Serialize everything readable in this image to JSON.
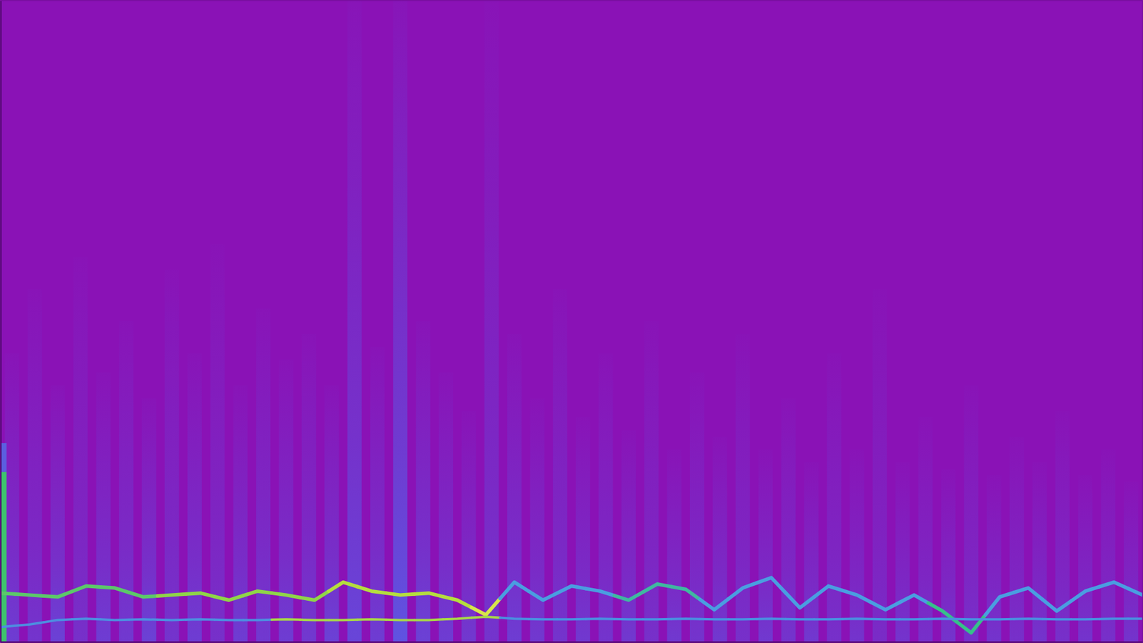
{
  "chart_data": {
    "type": "spectrogram",
    "tick_labels": false,
    "xlim": [
      0,
      100
    ],
    "ylim": [
      0,
      100
    ],
    "x": [
      0,
      2.5,
      5,
      7.5,
      10,
      12.5,
      15,
      17.5,
      20,
      22.5,
      25,
      27.5,
      30,
      32.5,
      35,
      37.5,
      40,
      42.5,
      45,
      47.5,
      50,
      52.5,
      55,
      57.5,
      60,
      62.5,
      65,
      67.5,
      70,
      72.5,
      75,
      77.5,
      80,
      82.5,
      85,
      87.5,
      90,
      92.5,
      95,
      97.5,
      100
    ],
    "series": [
      {
        "type": "line",
        "values": [
          7.6,
          7.3,
          7.0,
          8.7,
          8.4,
          7.0,
          7.3,
          7.6,
          6.5,
          7.9,
          7.3,
          6.5,
          9.3,
          7.9,
          7.3,
          7.6,
          6.5,
          4.2,
          9.3,
          6.5,
          8.7,
          7.9,
          6.5,
          9.0,
          8.2,
          5.0,
          8.4,
          10.0,
          5.3,
          8.7,
          7.3,
          5.0,
          7.3,
          4.8,
          1.4,
          7.0,
          8.4,
          4.8,
          7.9,
          9.3,
          7.3
        ],
        "colors": [
          "#5cc86a",
          "#5cc86a",
          "#5cc86a",
          "#5cc86a",
          "#5cc86a",
          "#5cc86a",
          "#8fd548",
          "#8fd548",
          "#8fd548",
          "#8fd548",
          "#8fd548",
          "#8fd548",
          "#b5de3e",
          "#b5de3e",
          "#b5de3e",
          "#b5de3e",
          "#b5de3e",
          "#d8e64a",
          "#4a9ee0",
          "#4a9ee0",
          "#4a9ee0",
          "#4a9ee0",
          "#3fb8a0",
          "#3fb8a0",
          "#3fb8a0",
          "#4a9ee0",
          "#4a9ee0",
          "#4a9ee0",
          "#4a9ee0",
          "#4a9ee0",
          "#4a9ee0",
          "#4a9ee0",
          "#4a9ee0",
          "#36c08a",
          "#36c08a",
          "#4a9ee0",
          "#4a9ee0",
          "#4a9ee0",
          "#4a9ee0",
          "#4a9ee0",
          "#4a9ee0"
        ]
      },
      {
        "type": "line",
        "values": [
          2.3,
          2.7,
          3.4,
          3.6,
          3.4,
          3.5,
          3.4,
          3.5,
          3.4,
          3.4,
          3.5,
          3.4,
          3.4,
          3.5,
          3.4,
          3.4,
          3.6,
          3.9,
          3.6,
          3.5,
          3.5,
          3.6,
          3.5,
          3.5,
          3.6,
          3.5,
          3.5,
          3.6,
          3.5,
          3.5,
          3.6,
          3.5,
          3.5,
          3.6,
          3.5,
          3.5,
          3.6,
          3.5,
          3.5,
          3.6,
          3.6
        ],
        "colors": [
          "#4d8ee0",
          "#4d8ee0",
          "#4d8ee0",
          "#4d8ee0",
          "#4d8ee0",
          "#4d8ee0",
          "#4d8ee0",
          "#4d8ee0",
          "#4d8ee0",
          "#4d8ee0",
          "#a8d848",
          "#a8d848",
          "#a8d848",
          "#a8d848",
          "#a8d848",
          "#a8d848",
          "#a8d848",
          "#a8d848",
          "#4a8fe0",
          "#4a8fe0",
          "#4a8fe0",
          "#4a8fe0",
          "#4a8fe0",
          "#4a8fe0",
          "#4a8fe0",
          "#4a8fe0",
          "#4a8fe0",
          "#4a8fe0",
          "#4a8fe0",
          "#4a8fe0",
          "#4a8fe0",
          "#4a8fe0",
          "#4a8fe0",
          "#4a8fe0",
          "#4a8fe0",
          "#4a8fe0",
          "#4a8fe0",
          "#4a8fe0",
          "#4a8fe0",
          "#4a8fe0",
          "#4a8fe0"
        ]
      }
    ],
    "stripes": {
      "x": [
        1,
        3,
        5,
        7,
        9,
        11,
        13,
        15,
        17,
        19,
        21,
        23,
        25,
        27,
        29,
        31,
        33,
        35,
        37,
        39,
        41,
        43,
        45,
        47,
        49,
        51,
        53,
        55,
        57,
        59,
        61,
        63,
        65,
        67,
        69,
        71,
        73,
        75,
        77,
        79,
        81,
        83,
        85,
        87,
        89,
        91,
        93,
        95,
        97,
        99
      ],
      "heights": [
        45,
        55,
        40,
        60,
        42,
        50,
        38,
        58,
        45,
        62,
        40,
        52,
        44,
        48,
        40,
        100,
        46,
        100,
        50,
        42,
        36,
        100,
        48,
        38,
        55,
        35,
        45,
        33,
        50,
        30,
        42,
        32,
        48,
        30,
        38,
        28,
        45,
        30,
        55,
        28,
        35,
        27,
        40,
        26,
        32,
        28,
        36,
        26,
        30,
        25
      ],
      "intensity": [
        0.5,
        0.4,
        0.55,
        0.35,
        0.5,
        0.45,
        0.55,
        0.4,
        0.5,
        0.35,
        0.5,
        0.45,
        0.5,
        0.45,
        0.55,
        0.6,
        0.5,
        0.75,
        0.55,
        0.5,
        0.45,
        0.4,
        0.5,
        0.45,
        0.4,
        0.45,
        0.4,
        0.45,
        0.35,
        0.45,
        0.4,
        0.45,
        0.35,
        0.45,
        0.4,
        0.45,
        0.35,
        0.4,
        0.3,
        0.4,
        0.35,
        0.4,
        0.35,
        0.4,
        0.35,
        0.4,
        0.35,
        0.4,
        0.35,
        0.4
      ]
    },
    "level_meter": {
      "values": [
        26.5,
        4.5
      ],
      "colors": [
        "#3ec46d",
        "#5b5fe0"
      ]
    }
  }
}
